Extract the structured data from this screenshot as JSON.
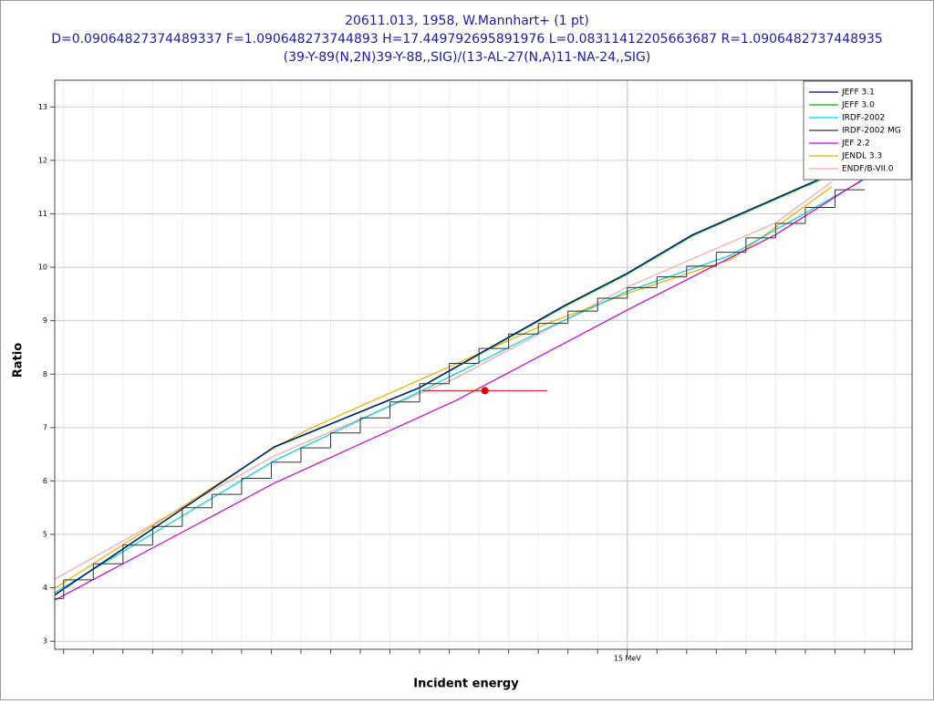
{
  "chart_data": {
    "type": "line",
    "title": [
      "20611.013, 1958, W.Mannhart+ (1 pt)",
      "D=0.09064827374489337 F=1.090648273744893 H=17.449792695891976 L=0.08311412205663687 R=1.0906482737448935",
      "(39-Y-89(N,2N)39-Y-88,,SIG)/(13-AL-27(N,A)11-NA-24,,SIG)"
    ],
    "xlabel": "Incident energy",
    "ylabel": "Ratio",
    "xlim": [
      13.07,
      15.96
    ],
    "ylim": [
      2.85,
      13.5
    ],
    "xticks": [
      {
        "value": 15,
        "label": "15 MeV"
      }
    ],
    "xminorticks": [
      13.1,
      13.2,
      13.3,
      13.4,
      13.5,
      13.6,
      13.7,
      13.8,
      13.9,
      14.0,
      14.1,
      14.2,
      14.3,
      14.4,
      14.5,
      14.6,
      14.7,
      14.8,
      14.9,
      15.1,
      15.2,
      15.3,
      15.4,
      15.5,
      15.6,
      15.7,
      15.8,
      15.9
    ],
    "yticks": [
      3,
      4,
      5,
      6,
      7,
      8,
      9,
      10,
      11,
      12,
      13
    ],
    "grid": true,
    "legend": "upper right",
    "series": [
      {
        "name": "JEFF 3.1",
        "color": "#00008b",
        "x": [
          13.07,
          13.81,
          14.3,
          14.79,
          15.0,
          15.22,
          15.66
        ],
        "values": [
          3.87,
          6.64,
          7.75,
          9.29,
          9.89,
          10.61,
          11.68
        ]
      },
      {
        "name": "JEFF 3.0",
        "color": "#00b000",
        "x": [
          13.07,
          13.81,
          14.3,
          14.79,
          15.0,
          15.22,
          15.66
        ],
        "values": [
          3.86,
          6.63,
          7.74,
          9.27,
          9.87,
          10.59,
          11.66
        ]
      },
      {
        "name": "IRDF-2002",
        "color": "#00d0d8",
        "x": [
          13.07,
          13.81,
          14.3,
          14.73,
          15.0,
          15.35,
          15.84
        ],
        "values": [
          3.91,
          6.38,
          7.67,
          8.86,
          9.55,
          10.23,
          11.77
        ]
      },
      {
        "name": "IRDF-2002 MG",
        "color": "#303030",
        "style": "step",
        "bins": [
          13.0,
          13.1,
          13.2,
          13.3,
          13.4,
          13.5,
          13.6,
          13.7,
          13.8,
          13.9,
          14.0,
          14.1,
          14.2,
          14.3,
          14.4,
          14.5,
          14.6,
          14.7,
          14.8,
          14.9,
          15.0,
          15.1,
          15.2,
          15.3,
          15.4,
          15.5,
          15.6,
          15.7,
          15.8
        ],
        "values": [
          3.8,
          4.15,
          4.45,
          4.8,
          5.15,
          5.5,
          5.75,
          6.05,
          6.35,
          6.62,
          6.9,
          7.18,
          7.48,
          7.82,
          8.2,
          8.48,
          8.75,
          8.95,
          9.18,
          9.42,
          9.62,
          9.82,
          10.02,
          10.28,
          10.55,
          10.82,
          11.12,
          11.45
        ]
      },
      {
        "name": "JEF 2.2",
        "color": "#d000c8",
        "x": [
          13.07,
          13.81,
          14.42,
          15.0,
          15.5,
          15.79
        ],
        "values": [
          3.77,
          5.96,
          7.5,
          9.2,
          10.61,
          11.63
        ]
      },
      {
        "name": "JENDL 3.3",
        "color": "#e8b000",
        "x": [
          13.07,
          13.81,
          13.93,
          14.73,
          15.0,
          15.35,
          15.69
        ],
        "values": [
          3.99,
          6.62,
          6.98,
          8.95,
          9.51,
          10.15,
          11.51
        ]
      },
      {
        "name": "ENDF/B-VII.0",
        "color": "#f0a8a8",
        "x": [
          13.07,
          13.81,
          14.42,
          15.0,
          15.5,
          15.69
        ],
        "values": [
          4.16,
          6.47,
          7.92,
          9.63,
          10.83,
          11.6
        ]
      }
    ],
    "experiment": {
      "x": [
        14.52
      ],
      "values": [
        7.69
      ],
      "xerr": [
        0.21
      ],
      "color": "#e00000"
    }
  }
}
